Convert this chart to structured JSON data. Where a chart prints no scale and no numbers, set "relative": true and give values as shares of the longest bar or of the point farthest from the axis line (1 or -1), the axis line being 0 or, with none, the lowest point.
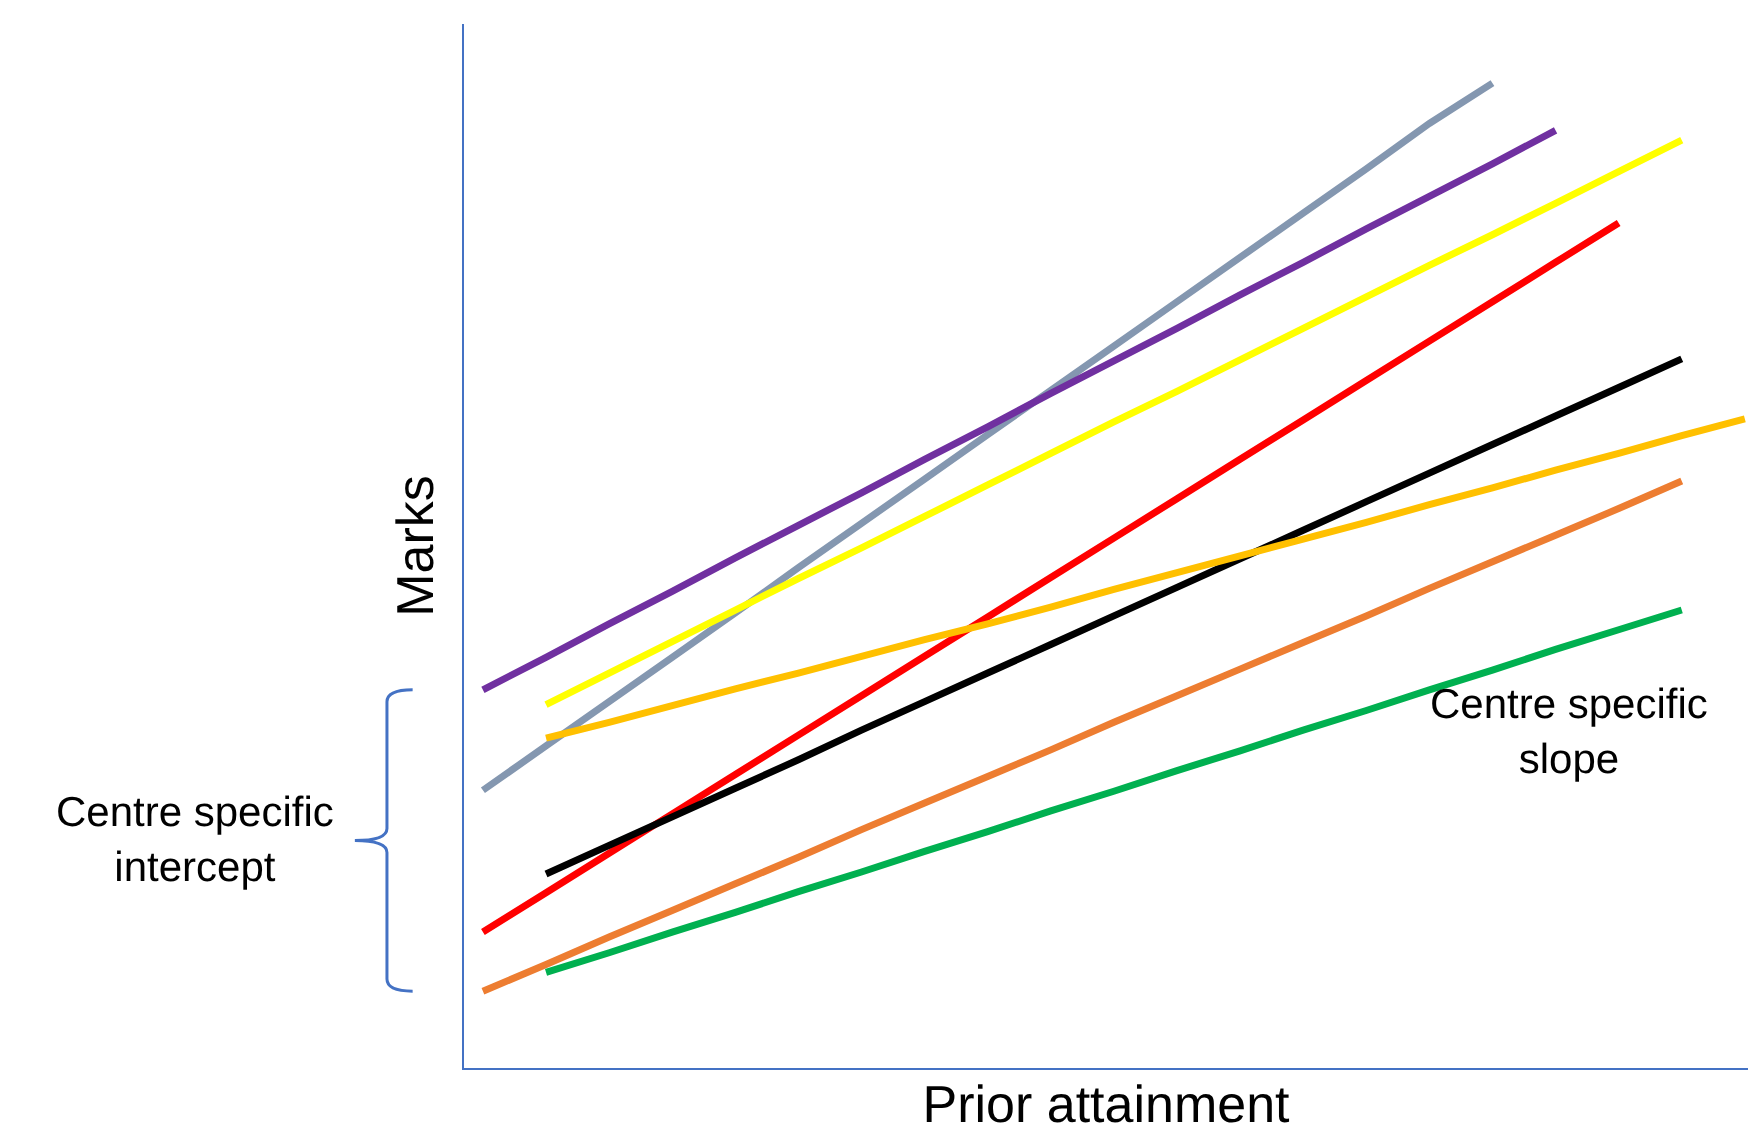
{
  "chart_data": {
    "type": "line",
    "relative": true,
    "xlabel": "Prior attainment",
    "ylabel": "Marks",
    "annotations": [
      "Centre specific intercept",
      "Centre specific slope"
    ],
    "categories": [
      null,
      null,
      null,
      null,
      null,
      null,
      null,
      null,
      null,
      null,
      null,
      null,
      null,
      null,
      null,
      null,
      null,
      null,
      null,
      null,
      null
    ],
    "series": [
      {
        "color": "#8497b0",
        "values": [
          0.282,
          0.327,
          0.372,
          0.417,
          0.462,
          0.508,
          0.553,
          0.598,
          0.643,
          0.688,
          0.733,
          0.778,
          0.823,
          0.868,
          0.913,
          0.959,
          1.0,
          null,
          null,
          null,
          null
        ]
      },
      {
        "color": "#7030a0",
        "values": [
          0.384,
          0.417,
          0.451,
          0.484,
          0.518,
          0.551,
          0.584,
          0.618,
          0.651,
          0.685,
          0.718,
          0.751,
          0.785,
          0.818,
          0.852,
          0.885,
          0.918,
          0.952,
          null,
          null,
          null
        ]
      },
      {
        "color": "#ffff00",
        "values": [
          null,
          0.369,
          0.401,
          0.433,
          0.465,
          0.497,
          0.528,
          0.56,
          0.592,
          0.624,
          0.656,
          0.687,
          0.719,
          0.751,
          0.783,
          0.815,
          0.846,
          0.878,
          0.91,
          0.942,
          null
        ]
      },
      {
        "color": "#ff0000",
        "values": [
          0.138,
          0.178,
          0.218,
          0.258,
          0.298,
          0.338,
          0.378,
          0.418,
          0.458,
          0.498,
          0.538,
          0.578,
          0.618,
          0.658,
          0.698,
          0.738,
          0.778,
          0.818,
          0.858,
          null,
          null
        ]
      },
      {
        "color": "#000000",
        "values": [
          null,
          0.197,
          0.226,
          0.255,
          0.284,
          0.313,
          0.343,
          0.372,
          0.401,
          0.43,
          0.459,
          0.488,
          0.517,
          0.546,
          0.575,
          0.604,
          0.633,
          0.662,
          0.691,
          0.72,
          null
        ]
      },
      {
        "color": "#ffc000",
        "values": [
          null,
          0.335,
          0.351,
          0.368,
          0.385,
          0.401,
          0.418,
          0.435,
          0.451,
          0.468,
          0.486,
          0.503,
          0.52,
          0.537,
          0.554,
          0.572,
          0.589,
          0.607,
          0.624,
          0.642,
          0.659
        ]
      },
      {
        "color": "#ed7d31",
        "values": [
          0.078,
          0.105,
          0.133,
          0.16,
          0.187,
          0.214,
          0.242,
          0.269,
          0.296,
          0.323,
          0.351,
          0.378,
          0.405,
          0.432,
          0.459,
          0.487,
          0.514,
          0.541,
          0.568,
          0.596,
          null
        ]
      },
      {
        "color": "#00b050",
        "values": [
          null,
          0.097,
          0.117,
          0.138,
          0.158,
          0.179,
          0.199,
          0.22,
          0.24,
          0.261,
          0.281,
          0.302,
          0.322,
          0.343,
          0.363,
          0.384,
          0.404,
          0.425,
          0.445,
          0.465,
          null
        ]
      }
    ]
  }
}
